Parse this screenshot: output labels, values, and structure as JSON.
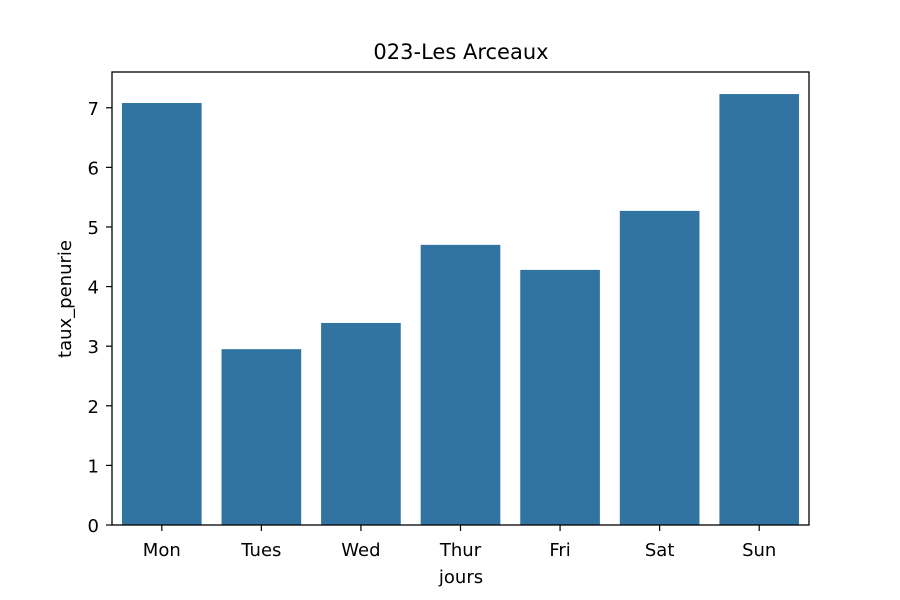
{
  "chart_data": {
    "type": "bar",
    "title": "023-Les Arceaux",
    "xlabel": "jours",
    "ylabel": "taux_penurie",
    "categories": [
      "Mon",
      "Tues",
      "Wed",
      "Thur",
      "Fri",
      "Sat",
      "Sun"
    ],
    "values": [
      7.08,
      2.95,
      3.39,
      4.7,
      4.28,
      5.27,
      7.23
    ],
    "ylim": [
      0,
      7.6
    ],
    "yticks": [
      0,
      1,
      2,
      3,
      4,
      5,
      6,
      7
    ],
    "grid": false,
    "bar_color": "#3274a1"
  }
}
